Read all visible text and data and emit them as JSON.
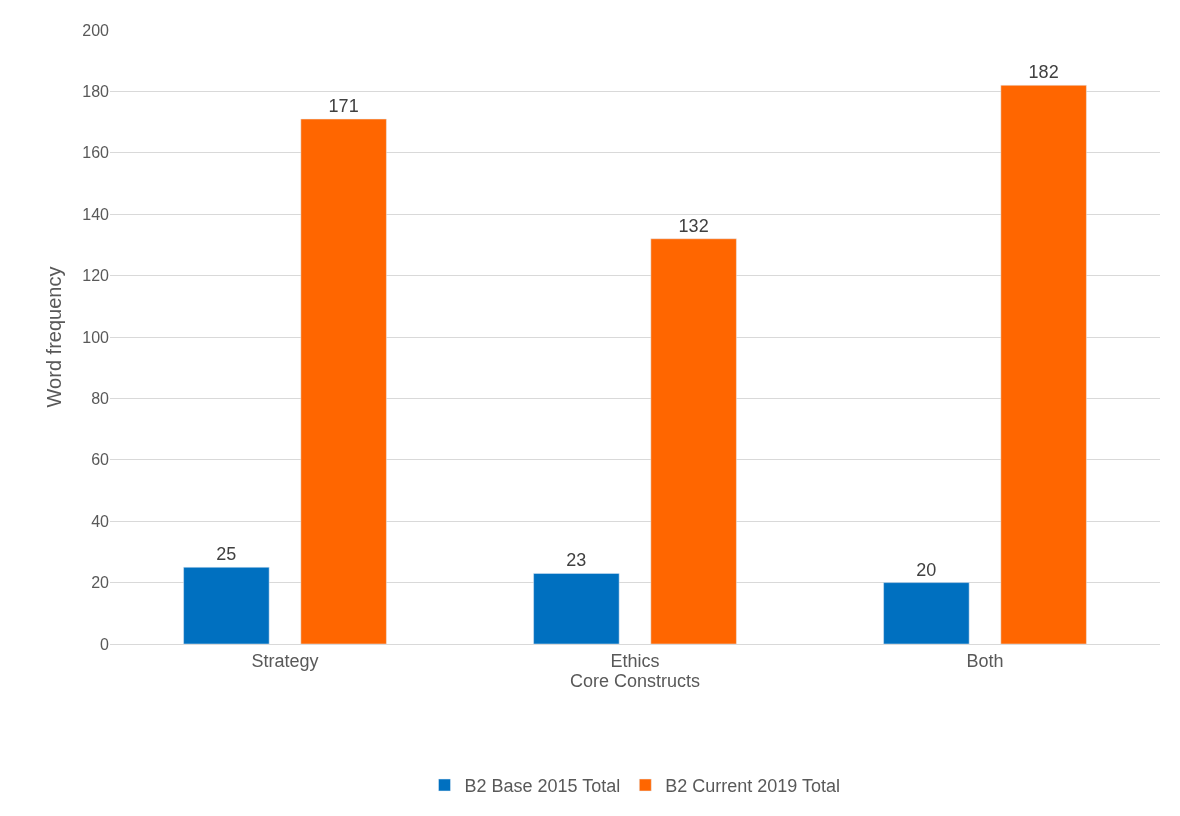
{
  "chart_data": {
    "type": "bar",
    "xlabel": "Core Constructs",
    "ylabel": "Word frequency",
    "categories": [
      "Strategy",
      "Ethics",
      "Both"
    ],
    "series": [
      {
        "name": "B2 Base 2015 Total",
        "color": "#0070c0",
        "values": [
          25,
          23,
          20
        ]
      },
      {
        "name": "B2 Current 2019 Total",
        "color": "#ff6600",
        "values": [
          171,
          132,
          182
        ]
      }
    ],
    "ylim": [
      0,
      200
    ],
    "yticks": [
      0,
      20,
      40,
      60,
      80,
      100,
      120,
      140,
      160,
      180,
      200
    ],
    "grid": "y",
    "legend": "bottom",
    "data_labels": true
  }
}
